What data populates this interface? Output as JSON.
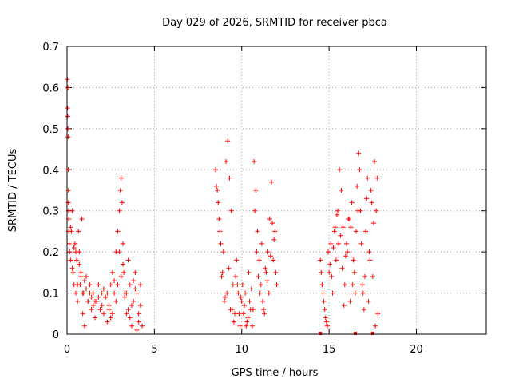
{
  "chart_data": {
    "type": "scatter",
    "title": "Day 029 of 2026, SRMTID for receiver pbca",
    "xlabel": "GPS time / hours",
    "ylabel": "SRMTID / TECUs",
    "xlim": [
      0,
      24
    ],
    "ylim": [
      0,
      0.7
    ],
    "x_ticks": [
      0,
      5,
      10,
      15,
      20
    ],
    "y_ticks": [
      0,
      0.1,
      0.2,
      0.3,
      0.4,
      0.5,
      0.6,
      0.7
    ],
    "x_tick_labels": [
      "0",
      "5",
      "10",
      "15",
      "20"
    ],
    "y_tick_labels": [
      "0",
      "0.1",
      "0.2",
      "0.3",
      "0.4",
      "0.5",
      "0.6",
      "0.7"
    ],
    "grid": true,
    "marker": "+",
    "color": "#ff0000",
    "series": [
      {
        "x": [
          0.02,
          0.03,
          0.04,
          0.05,
          0.06,
          0.07,
          0.08,
          0.09,
          0.1,
          0.12,
          0.05,
          0.08,
          0.1,
          0.15,
          0.2,
          0.25,
          0.3,
          0.35,
          0.4,
          0.45,
          0.5,
          0.55,
          0.6,
          0.65,
          0.7,
          0.75,
          0.8,
          0.85,
          0.9,
          0.95,
          1.0,
          1.1,
          1.2,
          1.3,
          1.4,
          1.5,
          1.6,
          1.7,
          1.8,
          1.9,
          2.0,
          2.1,
          2.2,
          2.3,
          2.4,
          2.5,
          2.6,
          2.7,
          2.8,
          2.9,
          3.0,
          3.05,
          3.1,
          3.15,
          3.2,
          3.25,
          3.3,
          3.4,
          3.5,
          3.6,
          3.7,
          3.8,
          3.9,
          4.0,
          4.1,
          4.2,
          4.3,
          0.3,
          0.6,
          0.9,
          1.2,
          1.5,
          1.8,
          2.1,
          2.4,
          2.7,
          3.0,
          3.3,
          3.6,
          3.9,
          4.2,
          0.2,
          0.5,
          0.8,
          1.1,
          1.4,
          1.7,
          2.0,
          2.3,
          2.6,
          2.9,
          3.2,
          3.5,
          3.8,
          4.1,
          0.4,
          0.7,
          1.0,
          1.3,
          1.6,
          1.9,
          2.2,
          2.5,
          2.8,
          3.1,
          3.4,
          3.7,
          4.0
        ],
        "y": [
          0.62,
          0.55,
          0.53,
          0.5,
          0.48,
          0.4,
          0.35,
          0.3,
          0.25,
          0.22,
          0.6,
          0.32,
          0.28,
          0.2,
          0.18,
          0.25,
          0.3,
          0.15,
          0.12,
          0.22,
          0.1,
          0.18,
          0.08,
          0.25,
          0.2,
          0.12,
          0.15,
          0.28,
          0.05,
          0.1,
          0.02,
          0.14,
          0.08,
          0.12,
          0.06,
          0.1,
          0.04,
          0.08,
          0.12,
          0.06,
          0.1,
          0.05,
          0.09,
          0.03,
          0.07,
          0.12,
          0.15,
          0.1,
          0.2,
          0.25,
          0.3,
          0.35,
          0.38,
          0.32,
          0.22,
          0.15,
          0.1,
          0.05,
          0.18,
          0.12,
          0.02,
          0.08,
          0.15,
          0.1,
          0.03,
          0.12,
          0.02,
          0.16,
          0.12,
          0.1,
          0.08,
          0.07,
          0.09,
          0.11,
          0.06,
          0.13,
          0.2,
          0.09,
          0.04,
          0.11,
          0.07,
          0.26,
          0.2,
          0.14,
          0.11,
          0.09,
          0.08,
          0.07,
          0.1,
          0.05,
          0.12,
          0.17,
          0.06,
          0.13,
          0.05,
          0.21,
          0.17,
          0.13,
          0.1,
          0.08,
          0.06,
          0.09,
          0.04,
          0.08,
          0.14,
          0.1,
          0.07,
          0.01
        ]
      },
      {
        "x": [
          8.5,
          8.6,
          8.7,
          8.8,
          8.9,
          9.0,
          9.1,
          9.2,
          9.3,
          9.4,
          9.5,
          9.6,
          9.7,
          9.8,
          9.9,
          10.0,
          10.1,
          10.2,
          10.3,
          10.4,
          10.5,
          10.6,
          10.7,
          10.8,
          10.9,
          11.0,
          11.1,
          11.2,
          11.3,
          11.4,
          11.5,
          11.6,
          11.7,
          11.8,
          11.9,
          12.0,
          8.55,
          8.75,
          8.95,
          9.15,
          9.35,
          9.55,
          9.75,
          9.95,
          10.15,
          10.35,
          10.55,
          10.75,
          10.95,
          11.15,
          11.35,
          11.55,
          11.75,
          11.95,
          8.65,
          8.85,
          9.05,
          9.25,
          9.45,
          9.65,
          9.85,
          10.05,
          10.25,
          10.45,
          10.65,
          10.85,
          11.05,
          11.25,
          11.45,
          11.65,
          11.85
        ],
        "y": [
          0.4,
          0.35,
          0.28,
          0.22,
          0.15,
          0.08,
          0.42,
          0.47,
          0.38,
          0.3,
          0.12,
          0.05,
          0.18,
          0.1,
          0.02,
          0.08,
          0.05,
          0.1,
          0.03,
          0.15,
          0.06,
          0.02,
          0.42,
          0.35,
          0.25,
          0.18,
          0.12,
          0.08,
          0.05,
          0.15,
          0.2,
          0.28,
          0.37,
          0.18,
          0.25,
          0.12,
          0.36,
          0.25,
          0.2,
          0.1,
          0.06,
          0.03,
          0.12,
          0.09,
          0.07,
          0.04,
          0.11,
          0.3,
          0.14,
          0.22,
          0.16,
          0.1,
          0.27,
          0.15,
          0.32,
          0.14,
          0.09,
          0.16,
          0.06,
          0.14,
          0.05,
          0.12,
          0.02,
          0.08,
          0.06,
          0.2,
          0.1,
          0.06,
          0.13,
          0.19,
          0.23
        ]
      },
      {
        "x": [
          14.5,
          14.6,
          14.7,
          14.8,
          14.9,
          15.0,
          15.1,
          15.2,
          15.3,
          15.4,
          15.5,
          15.6,
          15.7,
          15.8,
          15.9,
          16.0,
          16.1,
          16.2,
          16.3,
          16.4,
          16.5,
          16.6,
          16.7,
          16.8,
          16.9,
          17.0,
          17.1,
          17.2,
          17.3,
          17.4,
          17.5,
          17.6,
          17.7,
          17.8,
          14.55,
          14.75,
          14.95,
          15.15,
          15.35,
          15.55,
          15.75,
          15.95,
          16.15,
          16.35,
          16.55,
          16.75,
          16.95,
          17.15,
          17.35,
          17.55,
          17.75,
          14.65,
          14.85,
          15.05,
          15.25,
          15.45,
          15.65,
          15.85,
          16.05,
          16.25,
          16.45,
          16.65,
          16.85,
          17.05,
          17.25,
          17.45,
          17.65
        ],
        "y": [
          0.18,
          0.12,
          0.08,
          0.04,
          0.02,
          0.15,
          0.22,
          0.1,
          0.25,
          0.18,
          0.3,
          0.4,
          0.35,
          0.26,
          0.12,
          0.22,
          0.28,
          0.08,
          0.32,
          0.18,
          0.1,
          0.36,
          0.44,
          0.3,
          0.12,
          0.06,
          0.25,
          0.38,
          0.2,
          0.35,
          0.14,
          0.42,
          0.3,
          0.05,
          0.15,
          0.06,
          0.2,
          0.14,
          0.26,
          0.22,
          0.16,
          0.19,
          0.28,
          0.12,
          0.25,
          0.4,
          0.1,
          0.33,
          0.18,
          0.27,
          0.38,
          0.1,
          0.03,
          0.17,
          0.21,
          0.29,
          0.24,
          0.07,
          0.2,
          0.26,
          0.15,
          0.3,
          0.22,
          0.14,
          0.08,
          0.32,
          0.02
        ]
      }
    ],
    "zero_markers_x": [
      14.5,
      16.5,
      17.5
    ]
  }
}
